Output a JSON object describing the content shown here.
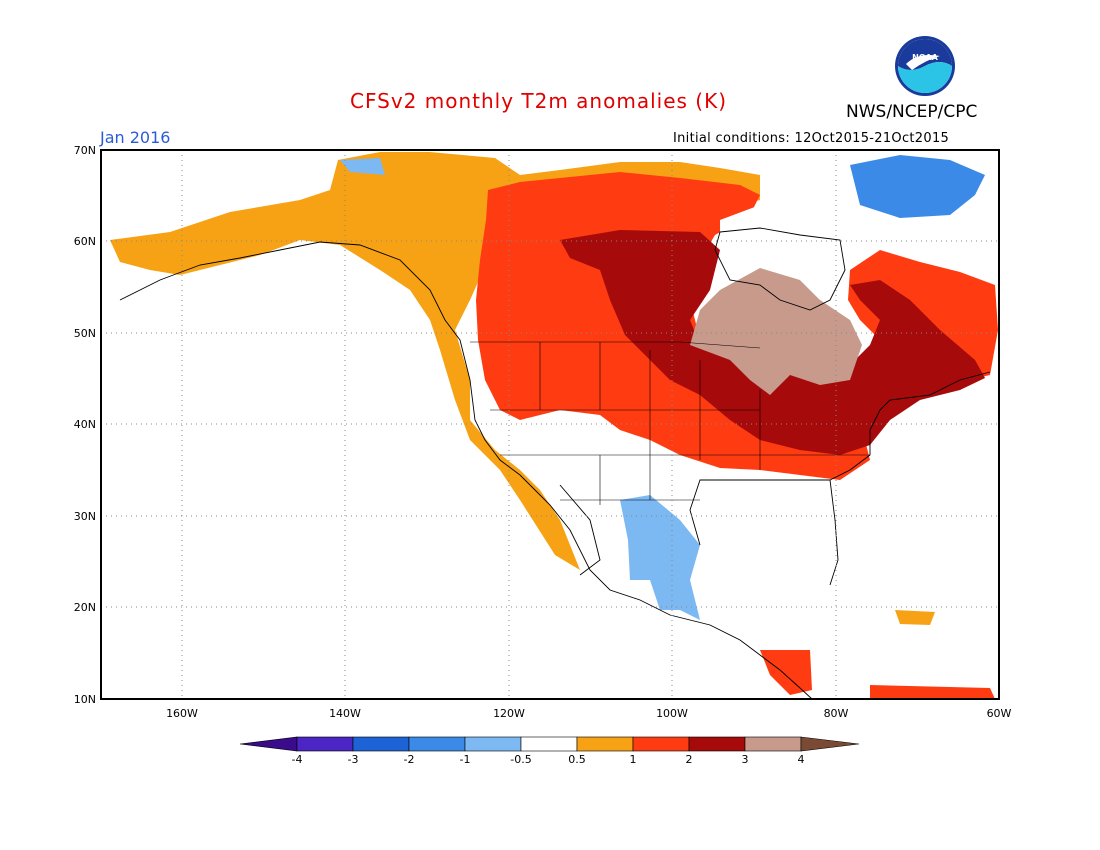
{
  "header": {
    "title": "CFSv2 monthly T2m anomalies (K)",
    "org": "NWS/NCEP/CPC",
    "logo_text": "NOAA",
    "month_label": "Jan 2016",
    "initial_conditions": "Initial conditions: 12Oct2015-21Oct2015"
  },
  "map": {
    "lat_labels": [
      "70N",
      "60N",
      "50N",
      "40N",
      "30N",
      "20N",
      "10N"
    ],
    "lon_labels": [
      "160W",
      "140W",
      "120W",
      "100W",
      "80W",
      "60W"
    ],
    "extent": {
      "lon_min": -172,
      "lon_max": -60,
      "lat_min": 10,
      "lat_max": 70
    },
    "grid": "dotted"
  },
  "legend": {
    "levels": [
      {
        "label": "-4",
        "color": "#4b26c4"
      },
      {
        "label": "-3",
        "color": "#1e63d6"
      },
      {
        "label": "-2",
        "color": "#3b8ae8"
      },
      {
        "label": "-1",
        "color": "#7cb8f2"
      },
      {
        "label": "-0.5",
        "color": "#ffffff"
      },
      {
        "label": "0.5",
        "color": "#f7a214"
      },
      {
        "label": "1",
        "color": "#ff3b12"
      },
      {
        "label": "2",
        "color": "#a60a0a"
      },
      {
        "label": "3",
        "color": "#c79a8c"
      },
      {
        "label": "4",
        "color": "#7a4a35"
      }
    ],
    "left_end_color": "#3a0c8c",
    "right_end_color": "#7a4a35"
  }
}
